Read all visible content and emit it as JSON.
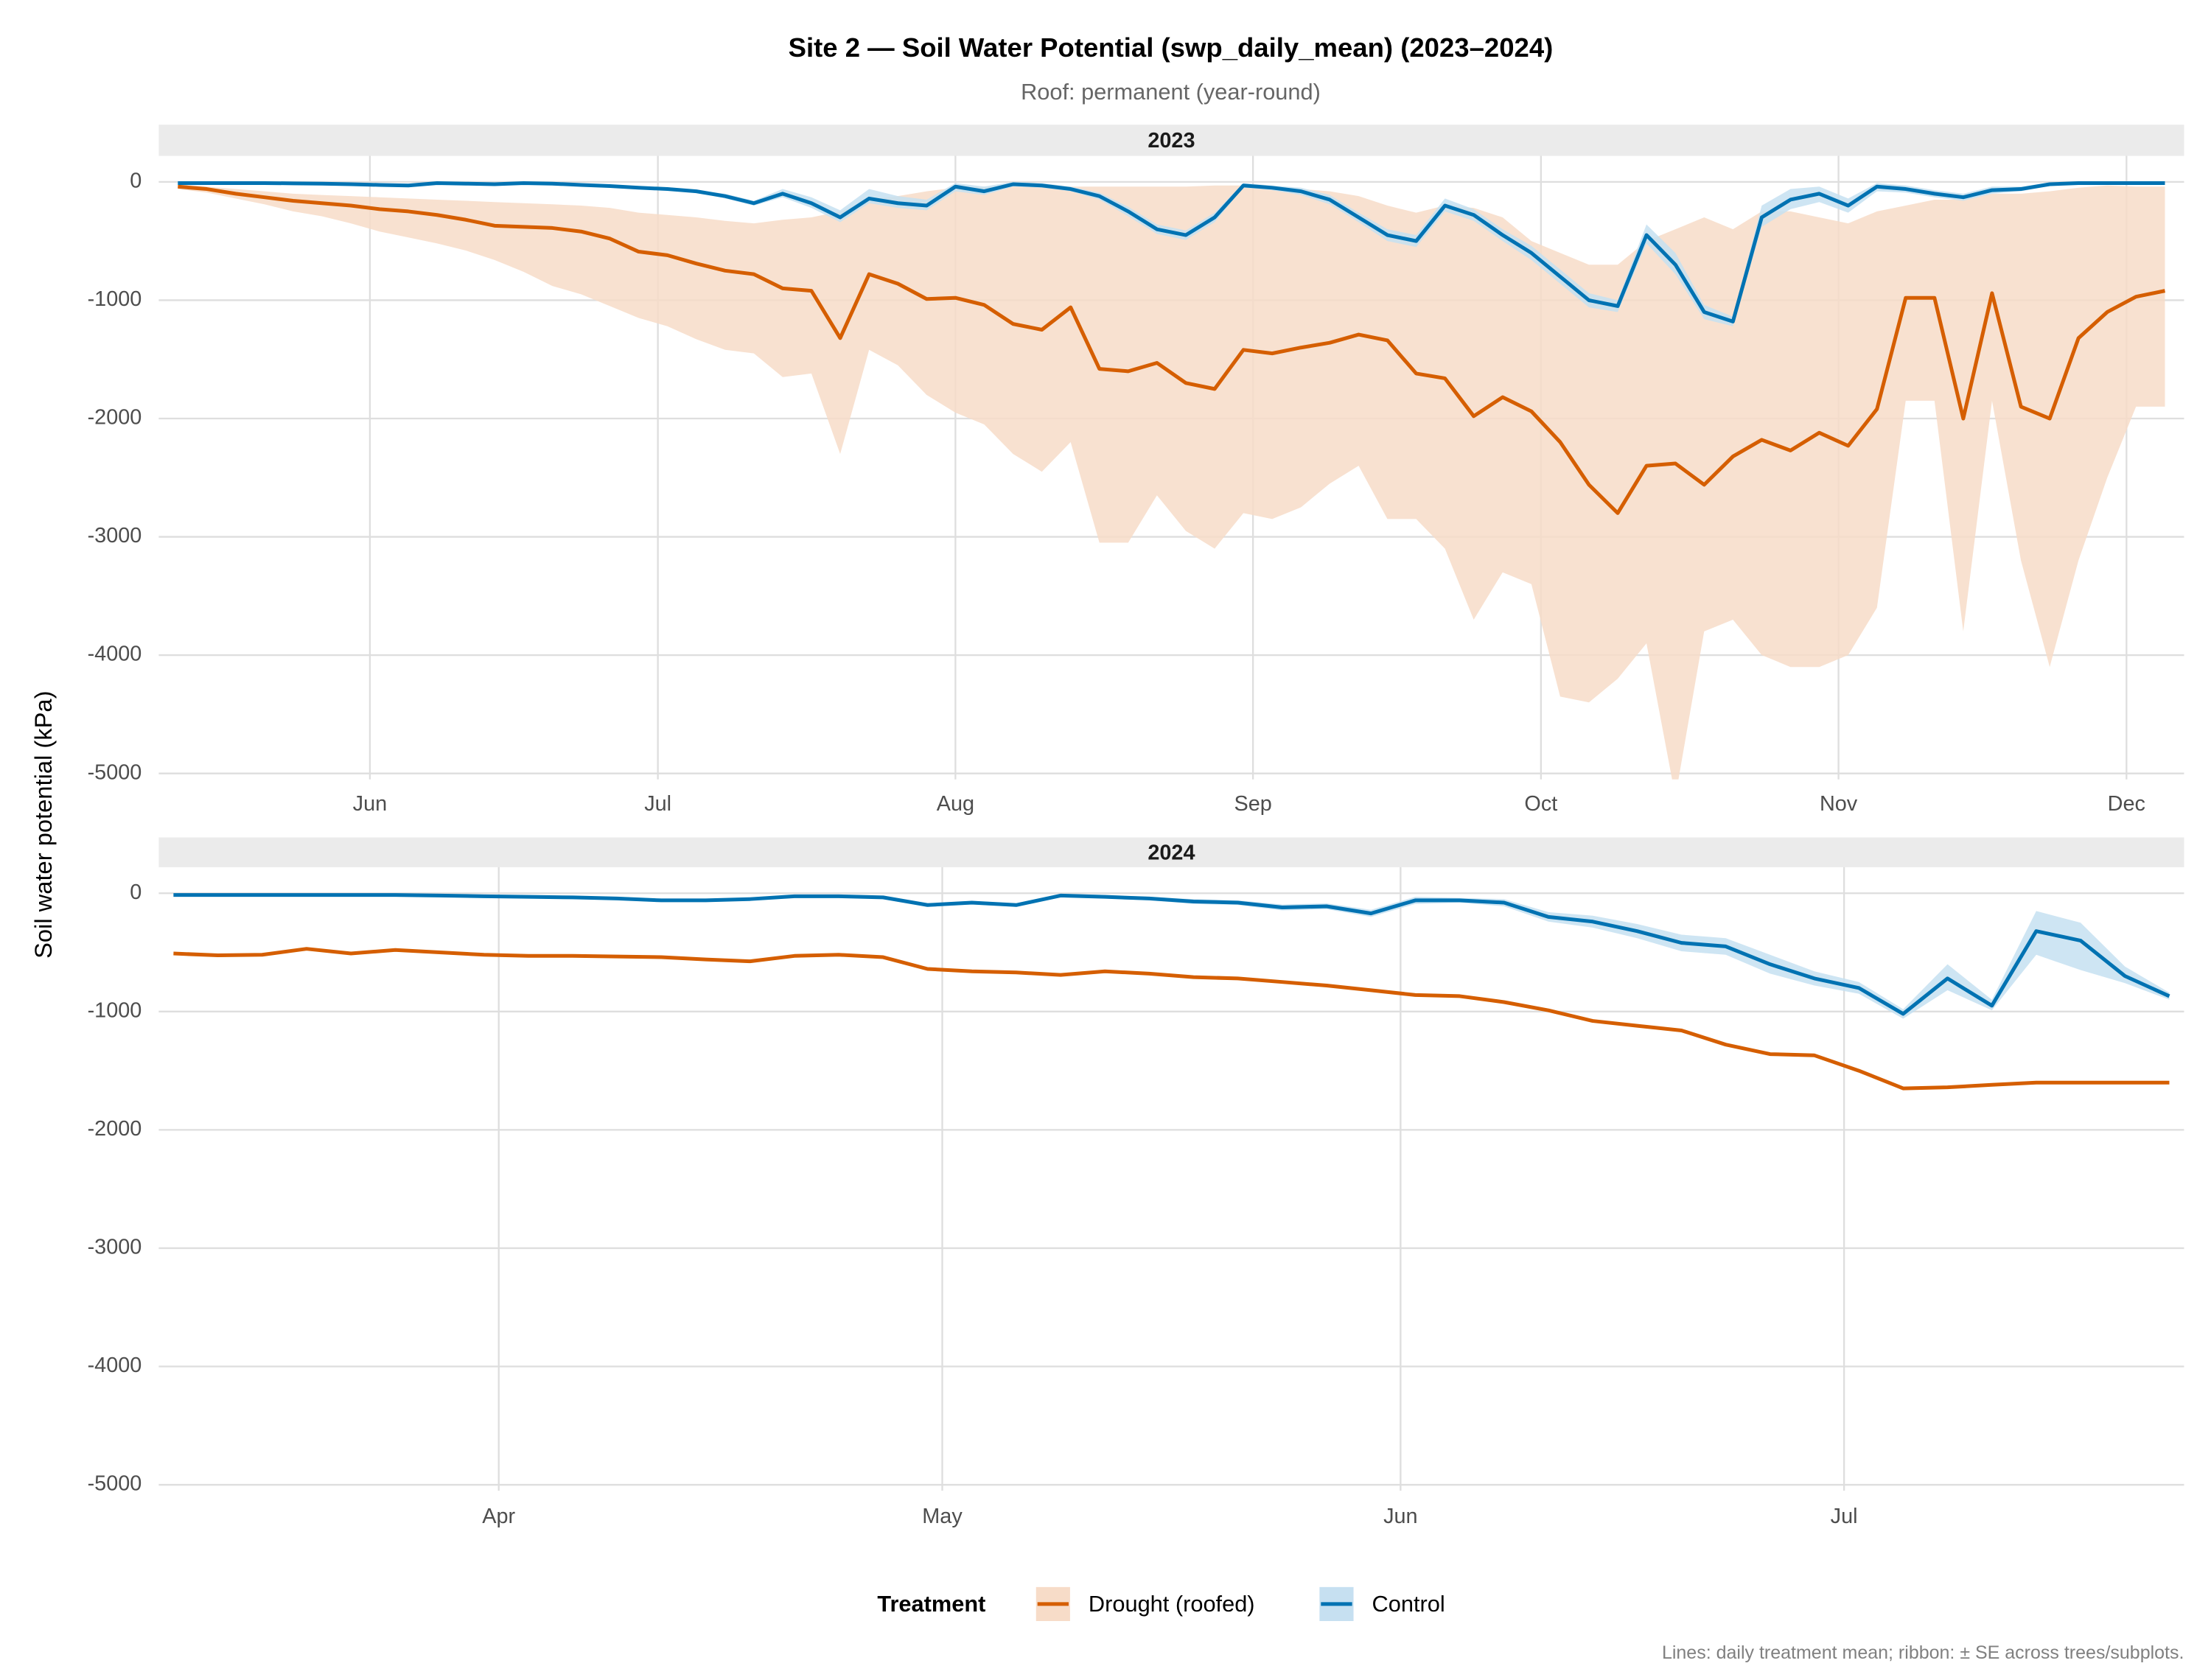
{
  "title": "Site 2 — Soil Water Potential (swp_daily_mean) (2023–2024)",
  "subtitle": "Roof: permanent (year-round)",
  "y_label": "Soil water potential (kPa)",
  "legend_title": "Treatment",
  "caption": "Lines: daily treatment mean; ribbon: ± SE across trees/subplots.",
  "chart_data": [
    {
      "type": "line",
      "facet": "2023",
      "x": [
        132,
        135,
        138,
        141,
        144,
        147,
        150,
        153,
        156,
        159,
        162,
        165,
        168,
        171,
        174,
        177,
        180,
        183,
        186,
        189,
        192,
        195,
        198,
        201,
        204,
        207,
        210,
        213,
        216,
        219,
        222,
        225,
        228,
        231,
        234,
        237,
        240,
        243,
        246,
        249,
        252,
        255,
        258,
        261,
        264,
        267,
        270,
        273,
        276,
        279,
        282,
        285,
        288,
        291,
        294,
        297,
        300,
        303,
        306,
        309,
        312,
        315,
        318,
        321,
        324,
        327,
        330,
        333,
        336,
        339
      ],
      "xlim": [
        130,
        341
      ],
      "xticks": [
        {
          "value": 152,
          "label": "Jun"
        },
        {
          "value": 182,
          "label": "Jul"
        },
        {
          "value": 213,
          "label": "Aug"
        },
        {
          "value": 244,
          "label": "Sep"
        },
        {
          "value": 274,
          "label": "Oct"
        },
        {
          "value": 305,
          "label": "Nov"
        },
        {
          "value": 335,
          "label": "Dec"
        }
      ],
      "ylim": [
        -5050,
        220
      ],
      "yticks": [
        0,
        -1000,
        -2000,
        -3000,
        -4000,
        -5000
      ],
      "grid": true,
      "series": [
        {
          "name": "Drought (roofed)",
          "color": "#D55E00",
          "ribbon_color": "#F7DCC8",
          "values": [
            -40,
            -60,
            -100,
            -130,
            -160,
            -180,
            -200,
            -230,
            -250,
            -280,
            -320,
            -370,
            -380,
            -390,
            -420,
            -480,
            -590,
            -620,
            -690,
            -750,
            -780,
            -900,
            -920,
            -1320,
            -780,
            -860,
            -990,
            -980,
            -1040,
            -1200,
            -1250,
            -1060,
            -1580,
            -1600,
            -1530,
            -1700,
            -1750,
            -1420,
            -1450,
            -1400,
            -1360,
            -1290,
            -1340,
            -1620,
            -1660,
            -1980,
            -1820,
            -1940,
            -2200,
            -2560,
            -2800,
            -2400,
            -2380,
            -2560,
            -2320,
            -2180,
            -2270,
            -2120,
            -2230,
            -1920,
            -980,
            -980,
            -2000,
            -940,
            -1900,
            -2000,
            -1320,
            -1100,
            -970,
            -920
          ],
          "lower": [
            -60,
            -90,
            -140,
            -190,
            -250,
            -290,
            -350,
            -420,
            -470,
            -520,
            -580,
            -660,
            -760,
            -880,
            -950,
            -1050,
            -1150,
            -1220,
            -1330,
            -1420,
            -1450,
            -1650,
            -1620,
            -2300,
            -1420,
            -1550,
            -1800,
            -1950,
            -2050,
            -2300,
            -2450,
            -2200,
            -3050,
            -3050,
            -2650,
            -2950,
            -3100,
            -2800,
            -2850,
            -2750,
            -2550,
            -2400,
            -2850,
            -2850,
            -3100,
            -3700,
            -3300,
            -3400,
            -4350,
            -4400,
            -4200,
            -3900,
            -5200,
            -3800,
            -3700,
            -4000,
            -4100,
            -4100,
            -4000,
            -3600,
            -1850,
            -1850,
            -3800,
            -1850,
            -3200,
            -4100,
            -3200,
            -2500,
            -1900,
            -1900
          ],
          "upper": [
            -20,
            -40,
            -60,
            -80,
            -100,
            -110,
            -120,
            -130,
            -140,
            -150,
            -160,
            -170,
            -180,
            -190,
            -200,
            -220,
            -260,
            -280,
            -300,
            -330,
            -350,
            -320,
            -300,
            -250,
            -150,
            -120,
            -80,
            -50,
            -40,
            -40,
            -40,
            -40,
            -40,
            -40,
            -40,
            -40,
            -30,
            -30,
            -40,
            -60,
            -80,
            -120,
            -200,
            -260,
            -200,
            -220,
            -300,
            -500,
            -600,
            -700,
            -700,
            -500,
            -400,
            -300,
            -400,
            -250,
            -250,
            -300,
            -350,
            -250,
            -200,
            -150,
            -150,
            -100,
            -100,
            -80,
            -50,
            -30,
            -40,
            -40
          ]
        },
        {
          "name": "Control",
          "color": "#0072B2",
          "ribbon_color": "#C6E0F1",
          "values": [
            -10,
            -10,
            -10,
            -10,
            -12,
            -15,
            -20,
            -25,
            -30,
            -10,
            -15,
            -20,
            -10,
            -15,
            -25,
            -35,
            -50,
            -60,
            -80,
            -120,
            -180,
            -100,
            -180,
            -300,
            -140,
            -180,
            -200,
            -40,
            -80,
            -20,
            -30,
            -60,
            -120,
            -250,
            -400,
            -450,
            -300,
            -30,
            -50,
            -80,
            -150,
            -300,
            -450,
            -500,
            -200,
            -280,
            -450,
            -600,
            -800,
            -1000,
            -1050,
            -450,
            -700,
            -1100,
            -1180,
            -300,
            -150,
            -100,
            -200,
            -40,
            -60,
            -100,
            -130,
            -70,
            -60,
            -20,
            -10,
            -10,
            -10,
            -10
          ],
          "lower": [
            -20,
            -20,
            -20,
            -20,
            -22,
            -25,
            -30,
            -35,
            -40,
            -20,
            -25,
            -30,
            -20,
            -25,
            -35,
            -45,
            -60,
            -70,
            -90,
            -140,
            -200,
            -130,
            -220,
            -340,
            -180,
            -220,
            -240,
            -80,
            -110,
            -40,
            -50,
            -80,
            -150,
            -290,
            -440,
            -490,
            -340,
            -50,
            -70,
            -110,
            -190,
            -340,
            -500,
            -550,
            -250,
            -330,
            -500,
            -660,
            -860,
            -1060,
            -1100,
            -520,
            -780,
            -1160,
            -1220,
            -380,
            -230,
            -170,
            -260,
            -80,
            -90,
            -130,
            -160,
            -100,
            -80,
            -35,
            -20,
            -20,
            -20,
            -20
          ],
          "upper": [
            0,
            0,
            0,
            0,
            -2,
            -5,
            -10,
            -15,
            -20,
            0,
            -5,
            -10,
            0,
            -5,
            -15,
            -25,
            -40,
            -50,
            -70,
            -100,
            -160,
            -60,
            -130,
            -240,
            -60,
            -120,
            -150,
            -10,
            -40,
            0,
            -10,
            -40,
            -90,
            -210,
            -360,
            -410,
            -260,
            -10,
            -30,
            -50,
            -110,
            -260,
            -400,
            -450,
            -140,
            -230,
            -400,
            -540,
            -740,
            -940,
            -1000,
            -360,
            -600,
            -1040,
            -1140,
            -200,
            -60,
            -40,
            -140,
            -10,
            -30,
            -70,
            -100,
            -40,
            -40,
            -5,
            0,
            0,
            0,
            0
          ]
        }
      ]
    },
    {
      "type": "line",
      "facet": "2024",
      "x": [
        70,
        73,
        76,
        79,
        82,
        85,
        88,
        91,
        94,
        97,
        100,
        103,
        106,
        109,
        112,
        115,
        118,
        121,
        124,
        127,
        130,
        133,
        136,
        139,
        142,
        145,
        148,
        151,
        154,
        157,
        160,
        163,
        166,
        169,
        172,
        175,
        178,
        181,
        184,
        187,
        190,
        193,
        196,
        199,
        202,
        205
      ],
      "xlim": [
        69,
        206
      ],
      "xticks": [
        {
          "value": 92,
          "label": "Apr"
        },
        {
          "value": 122,
          "label": "May"
        },
        {
          "value": 153,
          "label": "Jun"
        },
        {
          "value": 183,
          "label": "Jul"
        }
      ],
      "ylim": [
        -5050,
        220
      ],
      "yticks": [
        0,
        -1000,
        -2000,
        -3000,
        -4000,
        -5000
      ],
      "grid": true,
      "series": [
        {
          "color": "#D55E00",
          "values": [
            -510,
            -525,
            -520,
            -470,
            -510,
            -480,
            -500,
            -520,
            -530,
            -530,
            -535,
            -540,
            -560,
            -575,
            -530,
            -520,
            -540,
            -640,
            -660,
            -670,
            -690,
            -660,
            -680,
            -710,
            -720,
            -750,
            -780,
            -820,
            -860,
            -870,
            -920,
            -990,
            -1080,
            -1120,
            -1160,
            -1280,
            -1360,
            -1370,
            -1500,
            -1650,
            -1640,
            -1620,
            -1600,
            -1600,
            -1600,
            -1600
          ]
        },
        {
          "color": "#0072B2",
          "ribbon_color": "#C6E0F1",
          "values": [
            -15,
            -15,
            -15,
            -15,
            -15,
            -15,
            -20,
            -25,
            -30,
            -35,
            -45,
            -60,
            -60,
            -50,
            -25,
            -25,
            -35,
            -100,
            -80,
            -100,
            -20,
            -30,
            -45,
            -70,
            -80,
            -120,
            -110,
            -170,
            -60,
            -60,
            -80,
            -200,
            -240,
            -320,
            -420,
            -450,
            -600,
            -720,
            -800,
            -1020,
            -720,
            -950,
            -320,
            -400,
            -700,
            -870
          ],
          "lower": [
            -25,
            -25,
            -25,
            -25,
            -25,
            -25,
            -30,
            -35,
            -40,
            -45,
            -55,
            -70,
            -70,
            -60,
            -35,
            -35,
            -45,
            -115,
            -95,
            -115,
            -35,
            -45,
            -60,
            -90,
            -100,
            -145,
            -135,
            -200,
            -90,
            -80,
            -110,
            -240,
            -290,
            -380,
            -490,
            -520,
            -680,
            -780,
            -850,
            -1060,
            -820,
            -990,
            -520,
            -650,
            -760,
            -900
          ],
          "upper": [
            -5,
            -5,
            -5,
            -5,
            -5,
            -5,
            -10,
            -15,
            -20,
            -25,
            -35,
            -50,
            -50,
            -40,
            -15,
            -15,
            -25,
            -85,
            -65,
            -85,
            -5,
            -15,
            -30,
            -50,
            -60,
            -95,
            -85,
            -140,
            -30,
            -40,
            -50,
            -160,
            -190,
            -260,
            -350,
            -380,
            -520,
            -660,
            -750,
            -980,
            -600,
            -900,
            -150,
            -250,
            -620,
            -840
          ]
        }
      ]
    }
  ]
}
